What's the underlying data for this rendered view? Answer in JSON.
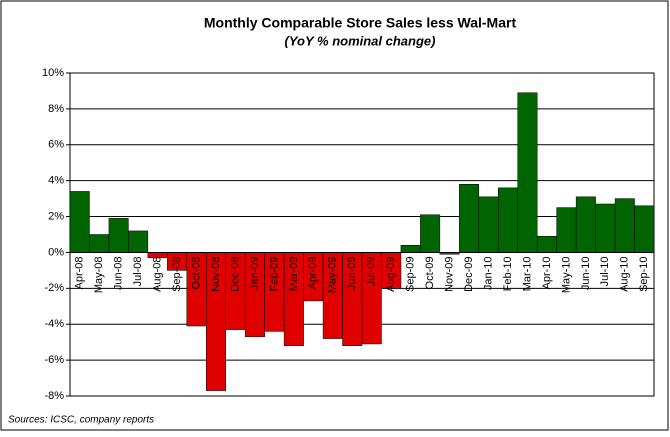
{
  "chart_data": {
    "type": "bar",
    "title": "Monthly Comparable Store Sales less Wal-Mart",
    "subtitle": "(YoY % nominal change)",
    "source": "Sources: ICSC, company reports",
    "categories": [
      "Apr-08",
      "May-08",
      "Jun-08",
      "Jul-08",
      "Aug-08",
      "Sep-08",
      "Oct-08",
      "Nov-08",
      "Dec-08",
      "Jan-09",
      "Feb-09",
      "Mar-09",
      "Apr-09",
      "May-09",
      "Jun-09",
      "Jul-09",
      "Aug-09",
      "Sep-09",
      "Oct-09",
      "Nov-09",
      "Dec-09",
      "Jan-10",
      "Feb-10",
      "Mar-10",
      "Apr-10",
      "May-10",
      "Jun-10",
      "Jul-10",
      "Aug-10",
      "Sep-10"
    ],
    "values": [
      3.4,
      1.0,
      1.9,
      1.2,
      -0.3,
      -1.0,
      -4.1,
      -7.7,
      -4.3,
      -4.7,
      -4.4,
      -5.2,
      -2.7,
      -4.8,
      -5.2,
      -5.1,
      -2.0,
      0.4,
      2.1,
      -0.1,
      3.8,
      3.1,
      3.6,
      8.9,
      0.9,
      2.5,
      3.1,
      2.7,
      3.0,
      2.6
    ],
    "positive_color": "#006400",
    "negative_color": "#e00000",
    "ylim": [
      -8,
      10
    ],
    "yticks": [
      {
        "value": -8,
        "label": "-8%"
      },
      {
        "value": -6,
        "label": "-6%"
      },
      {
        "value": -4,
        "label": "-4%"
      },
      {
        "value": -2,
        "label": "-2%"
      },
      {
        "value": 0,
        "label": "0%"
      },
      {
        "value": 2,
        "label": "2%"
      },
      {
        "value": 4,
        "label": "4%"
      },
      {
        "value": 6,
        "label": "6%"
      },
      {
        "value": 8,
        "label": "8%"
      },
      {
        "value": 10,
        "label": "10%"
      }
    ],
    "grid": true
  }
}
